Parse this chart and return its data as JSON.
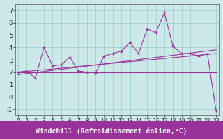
{
  "x_data": [
    0,
    1,
    2,
    3,
    4,
    5,
    6,
    7,
    8,
    9,
    10,
    11,
    12,
    13,
    14,
    15,
    16,
    17,
    18,
    19,
    20,
    21,
    22,
    23
  ],
  "y_main": [
    2.0,
    2.1,
    1.5,
    4.0,
    2.5,
    2.6,
    3.2,
    2.1,
    2.0,
    1.95,
    3.3,
    3.5,
    3.7,
    4.4,
    3.5,
    5.5,
    5.2,
    6.8,
    4.1,
    3.5,
    3.5,
    3.3,
    3.5,
    -1.1
  ],
  "line1_x": [
    0,
    23
  ],
  "line1_y": [
    2.0,
    3.5
  ],
  "line2_x": [
    0,
    23
  ],
  "line2_y": [
    2.0,
    2.0
  ],
  "line3_x": [
    0,
    23
  ],
  "line3_y": [
    1.8,
    3.8
  ],
  "bg_color": "#cce8e8",
  "grid_color": "#99cccc",
  "line_color": "#993399",
  "xlim": [
    -0.3,
    23.3
  ],
  "ylim": [
    -1.5,
    7.5
  ],
  "yticks": [
    -1,
    0,
    1,
    2,
    3,
    4,
    5,
    6,
    7
  ],
  "xticks": [
    0,
    1,
    2,
    3,
    4,
    5,
    6,
    7,
    8,
    9,
    10,
    11,
    12,
    13,
    14,
    15,
    16,
    17,
    18,
    19,
    20,
    21,
    22,
    23
  ],
  "xlabel": "Windchill (Refroidissement éolien,°C)",
  "xlabel_color": "#ffffff",
  "xlabel_bg": "#993399",
  "tick_fontsize": 5.5,
  "xlabel_fontsize": 7
}
